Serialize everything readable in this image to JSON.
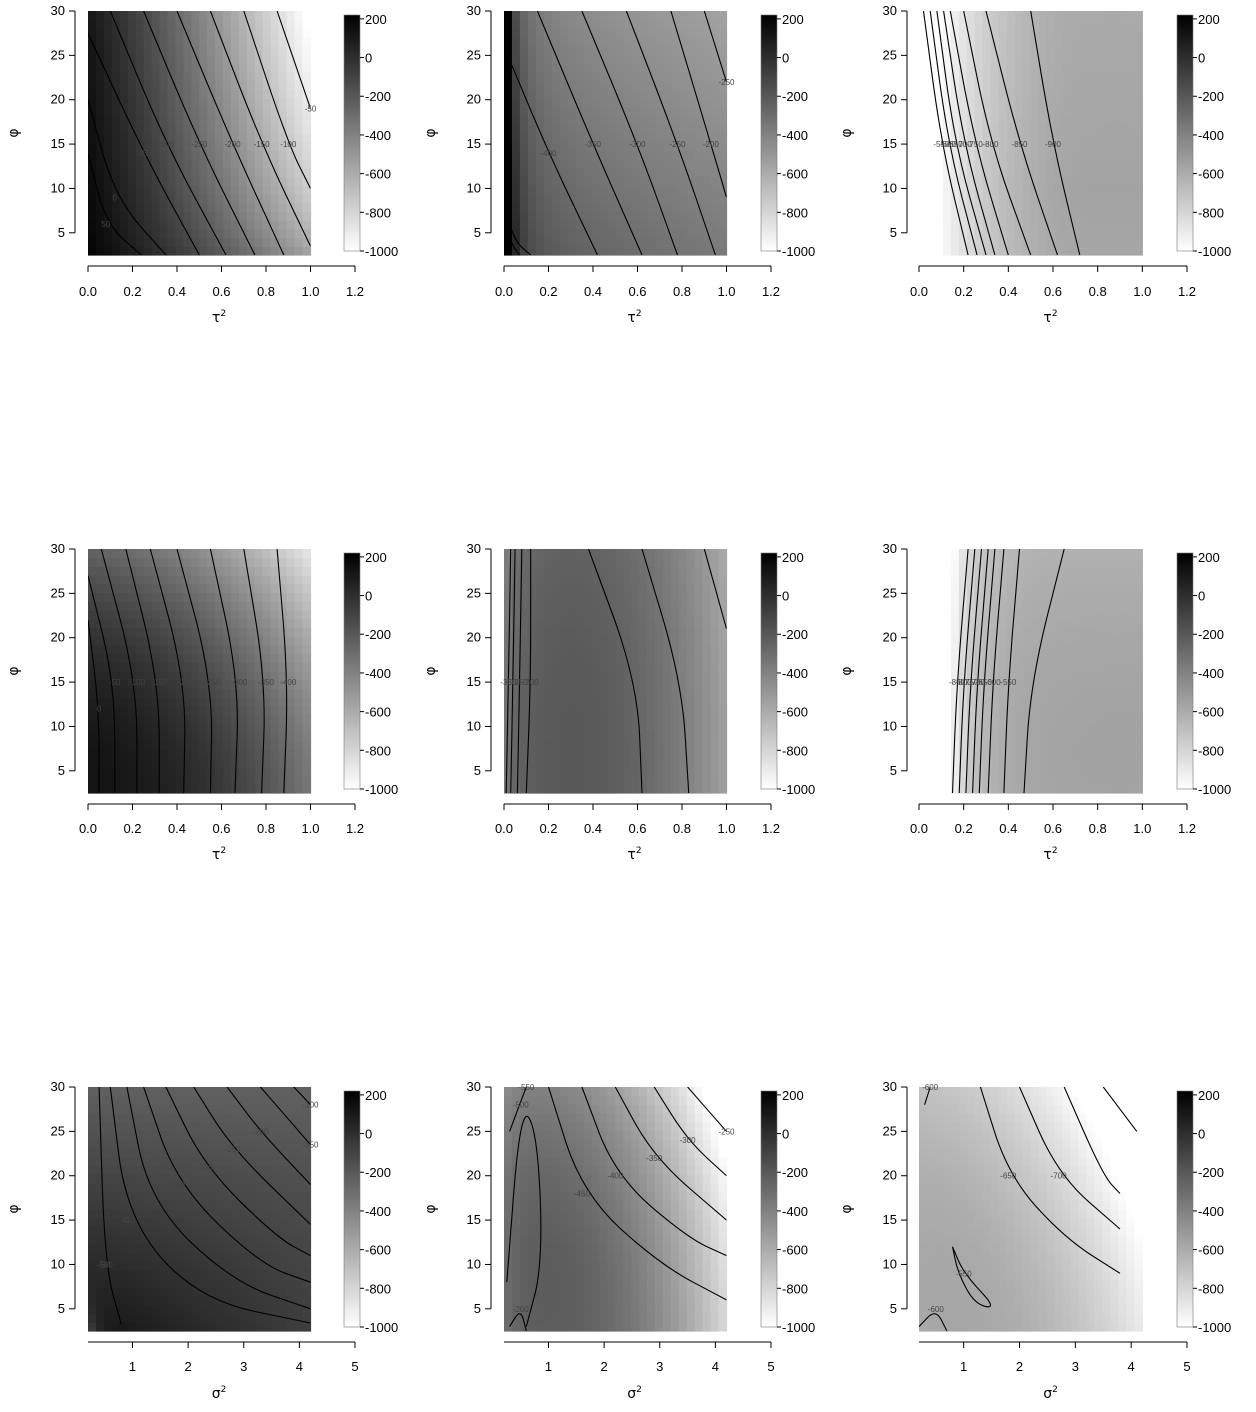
{
  "figure": {
    "panel_count": 9,
    "colorbar": {
      "ticks": [
        "200",
        "0",
        "-200",
        "-400",
        "-600",
        "-800",
        "-1000"
      ],
      "range": [
        -1000,
        220
      ],
      "dark_color": "#000000",
      "light_color": "#ffffff"
    }
  },
  "chart_data": [
    {
      "type": "heatmap",
      "panel": 1,
      "xlabel": "τ2",
      "ylabel": "φ",
      "xticks": [
        "0.0",
        "0.2",
        "0.4",
        "0.6",
        "0.8",
        "1.0",
        "1.2"
      ],
      "yticks": [
        "5",
        "10",
        "15",
        "20",
        "25",
        "30"
      ],
      "xlim": [
        0,
        1.2
      ],
      "ylim": [
        2.5,
        30
      ],
      "xdata": [
        0,
        1.0
      ],
      "ydata": [
        2.5,
        30
      ],
      "contour_labels": [
        "-350",
        "-300",
        "-250",
        "-200",
        "-150",
        "-100",
        "-50",
        "0",
        "50"
      ]
    },
    {
      "type": "heatmap",
      "panel": 2,
      "xlabel": "τ2",
      "ylabel": "φ",
      "xticks": [
        "0.0",
        "0.2",
        "0.4",
        "0.6",
        "0.8",
        "1.0",
        "1.2"
      ],
      "yticks": [
        "5",
        "10",
        "15",
        "20",
        "25",
        "30"
      ],
      "xlim": [
        0,
        1.2
      ],
      "ylim": [
        2.5,
        30
      ],
      "xdata": [
        0,
        1.0
      ],
      "ydata": [
        2.5,
        30
      ],
      "contour_labels": [
        "-400",
        "-350",
        "-300",
        "-250",
        "-200",
        "-250"
      ]
    },
    {
      "type": "heatmap",
      "panel": 3,
      "xlabel": "τ2",
      "ylabel": "φ",
      "xticks": [
        "0.0",
        "0.2",
        "0.4",
        "0.6",
        "0.8",
        "1.0",
        "1.2"
      ],
      "yticks": [
        "5",
        "10",
        "15",
        "20",
        "25",
        "30"
      ],
      "xlim": [
        0,
        1.2
      ],
      "ylim": [
        2.5,
        30
      ],
      "xdata": [
        0,
        1.0
      ],
      "ydata": [
        2.5,
        30
      ],
      "contour_labels": [
        "-550",
        "-600",
        "-650",
        "-700",
        "-750",
        "-800",
        "-850",
        "-900"
      ]
    },
    {
      "type": "heatmap",
      "panel": 4,
      "xlabel": "τ2",
      "ylabel": "φ",
      "xticks": [
        "0.0",
        "0.2",
        "0.4",
        "0.6",
        "0.8",
        "1.0",
        "1.2"
      ],
      "yticks": [
        "5",
        "10",
        "15",
        "20",
        "25",
        "30"
      ],
      "xlim": [
        0,
        1.2
      ],
      "ylim": [
        2.5,
        30
      ],
      "xdata": [
        0,
        1.0
      ],
      "ydata": [
        2.5,
        30
      ],
      "contour_labels": [
        "-400",
        "-350",
        "-300",
        "-250",
        "-200",
        "-150",
        "-100",
        "-50",
        "0"
      ]
    },
    {
      "type": "heatmap",
      "panel": 5,
      "xlabel": "τ2",
      "ylabel": "φ",
      "xticks": [
        "0.0",
        "0.2",
        "0.4",
        "0.6",
        "0.8",
        "1.0",
        "1.2"
      ],
      "yticks": [
        "5",
        "10",
        "15",
        "20",
        "25",
        "30"
      ],
      "xlim": [
        0,
        1.2
      ],
      "ylim": [
        2.5,
        30
      ],
      "xdata": [
        0,
        1.0
      ],
      "ydata": [
        2.5,
        30
      ],
      "contour_labels": [
        "-350",
        "-300",
        "-250",
        "-200"
      ]
    },
    {
      "type": "heatmap",
      "panel": 6,
      "xlabel": "τ2",
      "ylabel": "φ",
      "xticks": [
        "0.0",
        "0.2",
        "0.4",
        "0.6",
        "0.8",
        "1.0",
        "1.2"
      ],
      "yticks": [
        "5",
        "10",
        "15",
        "20",
        "25",
        "30"
      ],
      "xlim": [
        0,
        1.2
      ],
      "ylim": [
        2.5,
        30
      ],
      "xdata": [
        0,
        1.0
      ],
      "ydata": [
        2.5,
        30
      ],
      "contour_labels": [
        "-850",
        "-800",
        "-750",
        "-700",
        "-650",
        "-600",
        "-550"
      ]
    },
    {
      "type": "heatmap",
      "panel": 7,
      "xlabel": "σ2",
      "ylabel": "φ",
      "xticks": [
        "1",
        "2",
        "3",
        "4",
        "5"
      ],
      "yticks": [
        "5",
        "10",
        "15",
        "20",
        "25",
        "30"
      ],
      "xlim": [
        0.2,
        5
      ],
      "ylim": [
        2.5,
        30
      ],
      "xdata": [
        0.2,
        4.2
      ],
      "ydata": [
        2.5,
        30
      ],
      "contour_labels": [
        "-500",
        "-450",
        "-400",
        "-350",
        "-300",
        "-250",
        "-200",
        "-150",
        "-100",
        "-50",
        "0"
      ]
    },
    {
      "type": "heatmap",
      "panel": 8,
      "xlabel": "σ2",
      "ylabel": "φ",
      "xticks": [
        "1",
        "2",
        "3",
        "4",
        "5"
      ],
      "yticks": [
        "5",
        "10",
        "15",
        "20",
        "25",
        "30"
      ],
      "xlim": [
        0.2,
        5
      ],
      "ylim": [
        2.5,
        30
      ],
      "xdata": [
        0.2,
        4.2
      ],
      "ydata": [
        2.5,
        30
      ],
      "contour_labels": [
        "-550",
        "-500",
        "-450",
        "-400",
        "-350",
        "-300",
        "-250",
        "-200"
      ]
    },
    {
      "type": "heatmap",
      "panel": 9,
      "xlabel": "σ2",
      "ylabel": "φ",
      "xticks": [
        "1",
        "2",
        "3",
        "4",
        "5"
      ],
      "yticks": [
        "5",
        "10",
        "15",
        "20",
        "25",
        "30"
      ],
      "xlim": [
        0.2,
        5
      ],
      "ylim": [
        2.5,
        30
      ],
      "xdata": [
        0.2,
        4.2
      ],
      "ydata": [
        2.5,
        30
      ],
      "contour_labels": [
        "-600",
        "-550",
        "-600",
        "-650",
        "-700"
      ]
    }
  ]
}
